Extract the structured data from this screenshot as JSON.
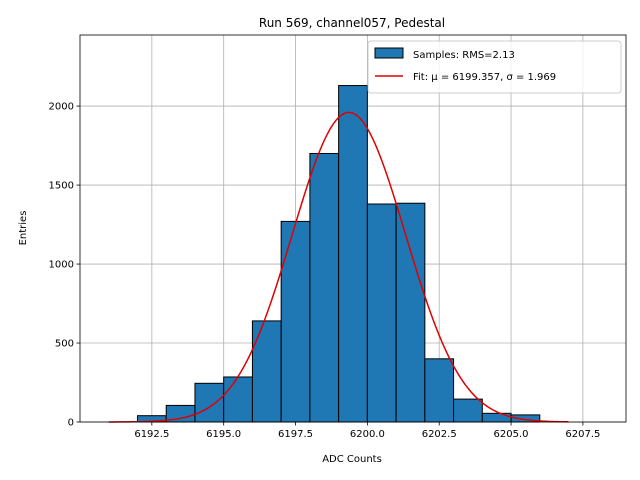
{
  "chart_data": {
    "type": "bar",
    "title": "Run 569, channel057, Pedestal",
    "xlabel": "ADC Counts",
    "ylabel": "Entries",
    "xlim": [
      6190.0,
      6209.0
    ],
    "ylim": [
      0,
      2450
    ],
    "grid": true,
    "legend_placement": "top-right",
    "x_ticks": [
      6192.5,
      6195.0,
      6197.5,
      6200.0,
      6202.5,
      6205.0,
      6207.5
    ],
    "x_tick_labels": [
      "6192.5",
      "6195.0",
      "6197.5",
      "6200.0",
      "6202.5",
      "6205.0",
      "6207.5"
    ],
    "y_ticks": [
      0,
      500,
      1000,
      1500,
      2000
    ],
    "y_tick_labels": [
      "0",
      "500",
      "1000",
      "1500",
      "2000"
    ],
    "bin_edges": [
      6192,
      6193,
      6194,
      6195,
      6196,
      6197,
      6198,
      6199,
      6200,
      6201,
      6202,
      6203,
      6204,
      6205,
      6206
    ],
    "values": [
      40,
      105,
      245,
      285,
      640,
      1270,
      1700,
      2130,
      1380,
      1385,
      400,
      145,
      55,
      45
    ],
    "histogram": {
      "name": "Samples: RMS=2.13",
      "color": "#1f77b4",
      "edge_color": "#000000"
    },
    "fit": {
      "name": "Fit: μ = 6199.357, σ = 1.969",
      "color": "#e00000",
      "mu": 6199.357,
      "sigma": 1.969,
      "amplitude": 1960,
      "x_range": [
        6191.0,
        6207.0
      ]
    }
  }
}
